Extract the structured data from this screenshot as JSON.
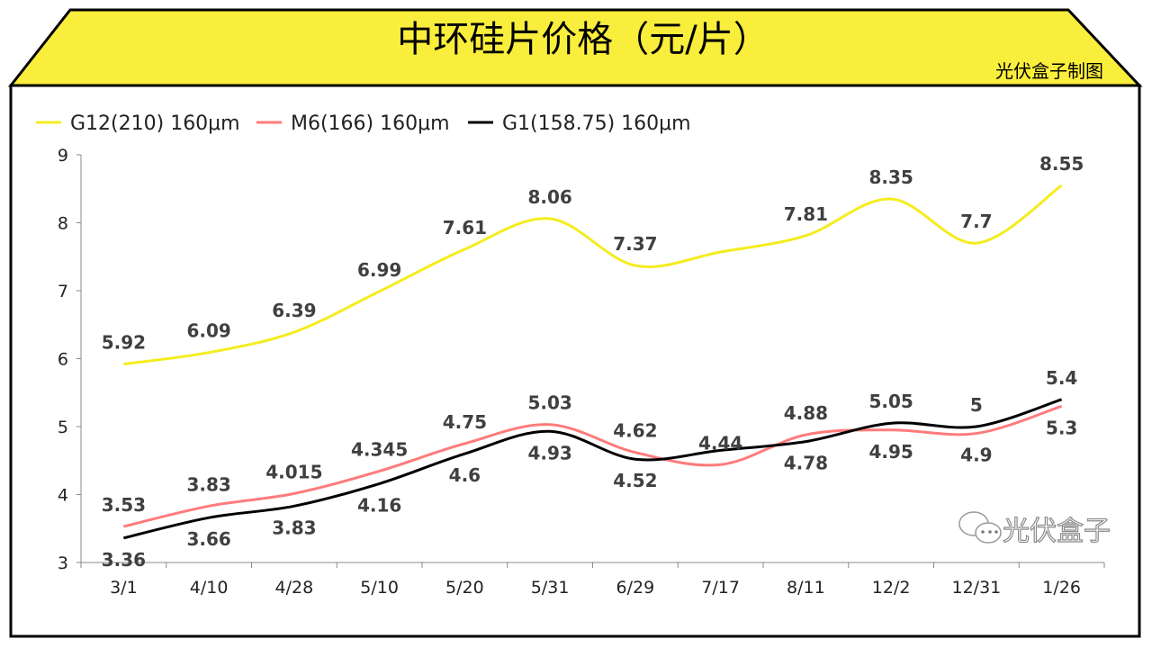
{
  "header": {
    "title": "中环硅片价格（元/片）",
    "credit": "光伏盒子制图",
    "band_color": "#FAEE3C"
  },
  "watermark": {
    "text": "光伏盒子",
    "icon": "wechat-icon"
  },
  "chart_data": {
    "type": "line",
    "smooth": true,
    "title": "中环硅片价格（元/片）",
    "xlabel": "",
    "ylabel": "",
    "categories": [
      "3/1",
      "4/10",
      "4/28",
      "5/10",
      "5/20",
      "5/31",
      "6/29",
      "7/17",
      "8/11",
      "12/2",
      "12/31",
      "1/26"
    ],
    "ylim": [
      3,
      9
    ],
    "yticks": [
      "3",
      "4",
      "5",
      "6",
      "7",
      "8",
      "9"
    ],
    "grid": false,
    "legend": "top-left",
    "series": [
      {
        "name": "G12(210) 160μm",
        "color": "#F5EC1E",
        "values": [
          5.92,
          6.09,
          6.39,
          6.99,
          7.61,
          8.06,
          7.37,
          7.57,
          7.81,
          8.35,
          7.7,
          8.55
        ],
        "labels": [
          "5.92",
          "6.09",
          "6.39",
          "6.99",
          "7.61",
          "8.06",
          "7.37",
          null,
          "7.81",
          "8.35",
          "7.7",
          "8.55"
        ]
      },
      {
        "name": "M6(166) 160μm",
        "color": "#FF7B7B",
        "values": [
          3.53,
          3.83,
          4.015,
          4.345,
          4.75,
          5.03,
          4.62,
          4.44,
          4.88,
          4.95,
          4.9,
          5.3
        ],
        "labels": [
          "3.53",
          "3.83",
          "4.015",
          "4.345",
          "4.75",
          "5.03",
          "4.62",
          "4.44",
          "4.88",
          "4.95",
          "4.9",
          "5.3"
        ]
      },
      {
        "name": "G1(158.75) 160μm",
        "color": "#000000",
        "values": [
          3.36,
          3.66,
          3.83,
          4.16,
          4.6,
          4.93,
          4.52,
          4.65,
          4.78,
          5.05,
          5,
          5.4
        ],
        "labels": [
          "3.36",
          "3.66",
          "3.83",
          "4.16",
          "4.6",
          "4.93",
          "4.52",
          null,
          "4.78",
          "5.05",
          "5",
          "5.4"
        ]
      }
    ]
  }
}
